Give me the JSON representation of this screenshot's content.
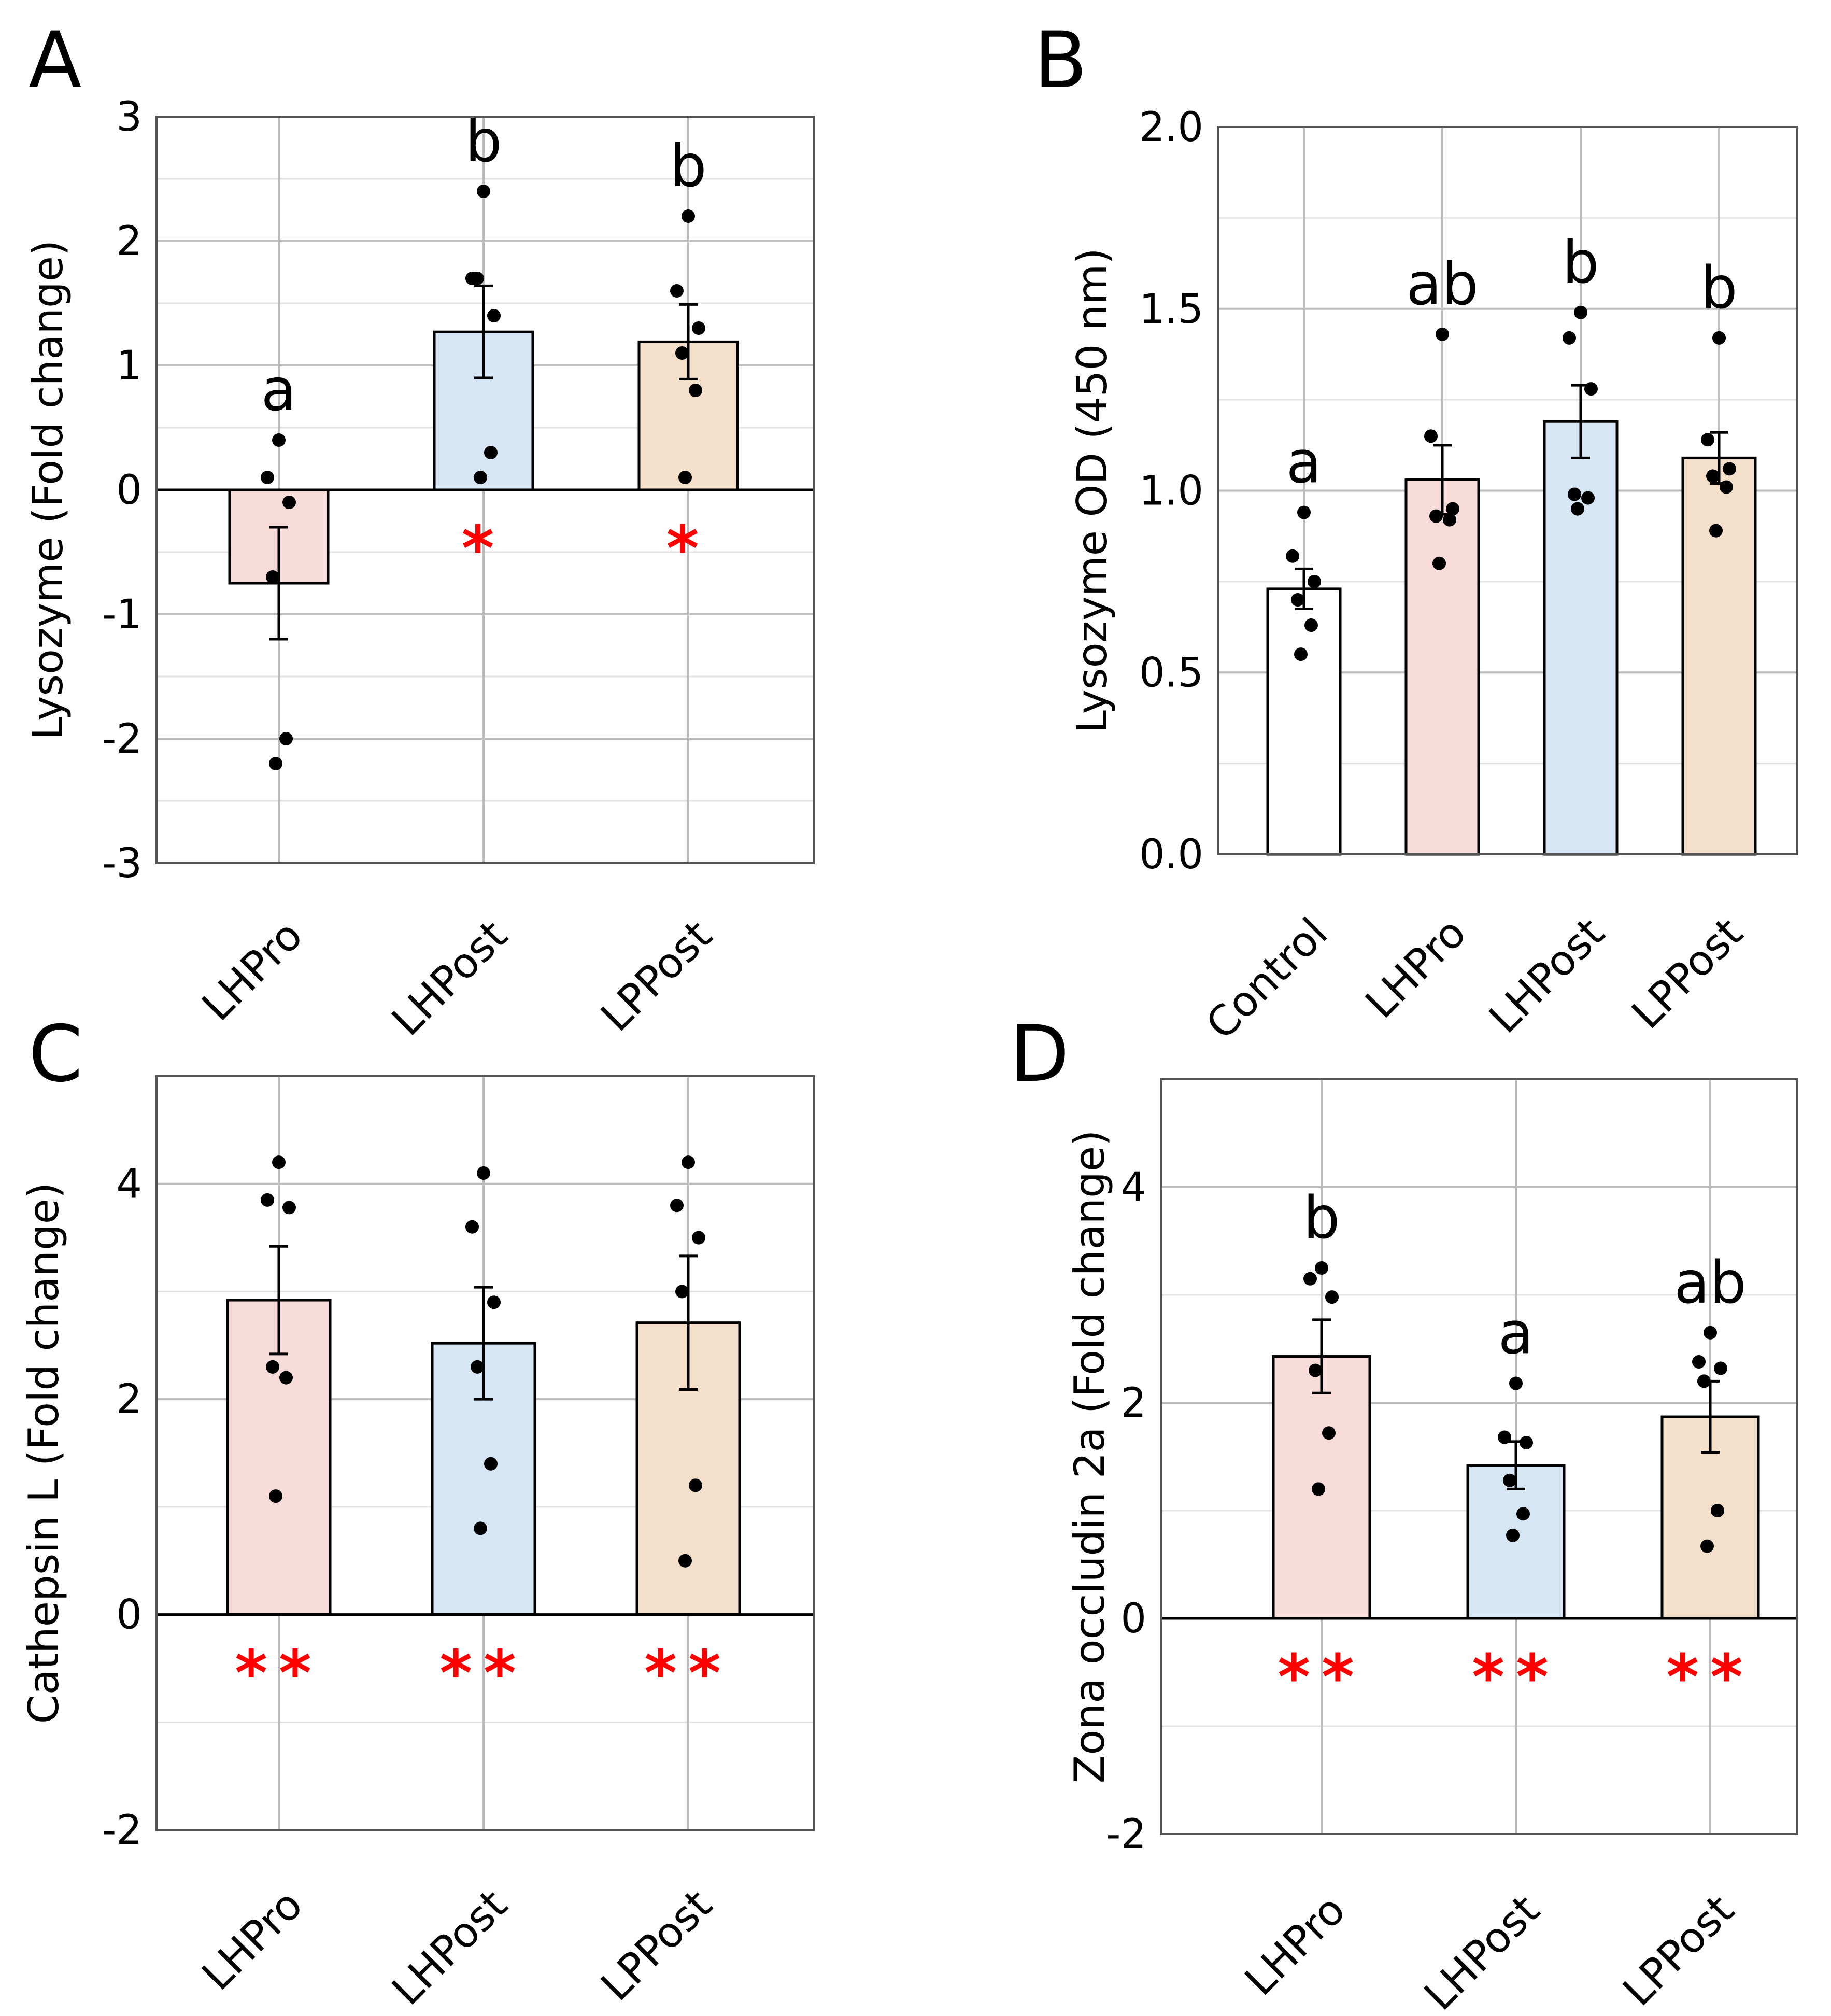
{
  "colors": {
    "Control": "#ffffff",
    "LHPro": "#f8dcd9",
    "LHPost": "#d6e6f4",
    "LPPost": "#f4dfcb",
    "star": "#ff0000"
  },
  "chart_data": [
    {
      "panel": "A",
      "type": "bar",
      "ylabel": "Lysozyme (Fold change)",
      "ylim": [
        -3,
        3
      ],
      "yticks": [
        -3,
        -2,
        -1,
        0,
        1,
        2,
        3
      ],
      "ytick_labels": [
        "-3",
        "-2",
        "-1",
        "0",
        "1",
        "2",
        "3"
      ],
      "minor_step": 0.5,
      "zero_line": true,
      "categories": [
        "LHPro",
        "LHPost",
        "LPPost"
      ],
      "values": [
        -0.75,
        1.27,
        1.19
      ],
      "errors": [
        0.45,
        0.37,
        0.3
      ],
      "points": [
        [
          0.4,
          0.1,
          -0.1,
          -0.7,
          -2.0,
          -2.2
        ],
        [
          2.4,
          1.7,
          1.4,
          1.7,
          0.3,
          0.1
        ],
        [
          2.2,
          1.6,
          1.3,
          1.1,
          0.8,
          0.1
        ]
      ],
      "sig_letters": [
        "a",
        "b",
        "b"
      ],
      "stars": [
        "",
        "*",
        "*"
      ]
    },
    {
      "panel": "B",
      "type": "bar",
      "ylabel": "Lysozyme OD (450 nm)",
      "ylim": [
        0,
        2
      ],
      "yticks": [
        0,
        0.5,
        1,
        1.5,
        2
      ],
      "ytick_labels": [
        "0.0",
        "0.5",
        "1.0",
        "1.5",
        "2.0"
      ],
      "minor_step": 0.25,
      "zero_line": false,
      "categories": [
        "Control",
        "LHPro",
        "LHPost",
        "LPPost"
      ],
      "values": [
        0.73,
        1.03,
        1.19,
        1.09
      ],
      "errors": [
        0.055,
        0.095,
        0.1,
        0.07
      ],
      "points": [
        [
          0.94,
          0.82,
          0.75,
          0.7,
          0.63,
          0.55
        ],
        [
          1.43,
          1.15,
          0.95,
          0.93,
          0.92,
          0.8
        ],
        [
          1.49,
          1.42,
          1.28,
          0.99,
          0.98,
          0.95
        ],
        [
          1.42,
          1.14,
          1.06,
          1.04,
          1.01,
          0.89
        ]
      ],
      "sig_letters": [
        "a",
        "ab",
        "b",
        "b"
      ],
      "stars": [
        "",
        "",
        "",
        ""
      ]
    },
    {
      "panel": "C",
      "type": "bar",
      "ylabel": "Cathepsin L (Fold change)",
      "ylim": [
        -2,
        5
      ],
      "yticks": [
        -2,
        0,
        2,
        4
      ],
      "ytick_labels": [
        "-2",
        "0",
        "2",
        "4"
      ],
      "minor_step": 1,
      "zero_line": true,
      "categories": [
        "LHPro",
        "LHPost",
        "LPPost"
      ],
      "values": [
        2.92,
        2.52,
        2.71
      ],
      "errors": [
        0.5,
        0.52,
        0.62
      ],
      "points": [
        [
          4.2,
          3.85,
          3.78,
          2.3,
          2.2,
          1.1
        ],
        [
          4.1,
          3.6,
          2.9,
          2.3,
          1.4,
          0.8
        ],
        [
          4.2,
          3.8,
          3.5,
          3.0,
          1.2,
          0.5
        ]
      ],
      "sig_letters": [
        "",
        "",
        ""
      ],
      "stars": [
        "**",
        "**",
        "**"
      ]
    },
    {
      "panel": "D",
      "type": "bar",
      "ylabel": "Zona occludin 2a (Fold change)",
      "ylim": [
        -2,
        5
      ],
      "yticks": [
        -2,
        0,
        2,
        4
      ],
      "ytick_labels": [
        "-2",
        "0",
        "2",
        "4"
      ],
      "minor_step": 1,
      "zero_line": true,
      "categories": [
        "LHPro",
        "LHPost",
        "LPPost"
      ],
      "values": [
        2.43,
        1.42,
        1.87
      ],
      "errors": [
        0.34,
        0.22,
        0.33
      ],
      "points": [
        [
          3.25,
          3.15,
          2.98,
          2.3,
          1.72,
          1.2
        ],
        [
          2.18,
          1.68,
          1.63,
          1.28,
          0.97,
          0.77
        ],
        [
          2.65,
          2.38,
          2.32,
          2.2,
          1.0,
          0.67
        ]
      ],
      "sig_letters": [
        "b",
        "a",
        "ab"
      ],
      "stars": [
        "**",
        "**",
        "**"
      ]
    }
  ]
}
